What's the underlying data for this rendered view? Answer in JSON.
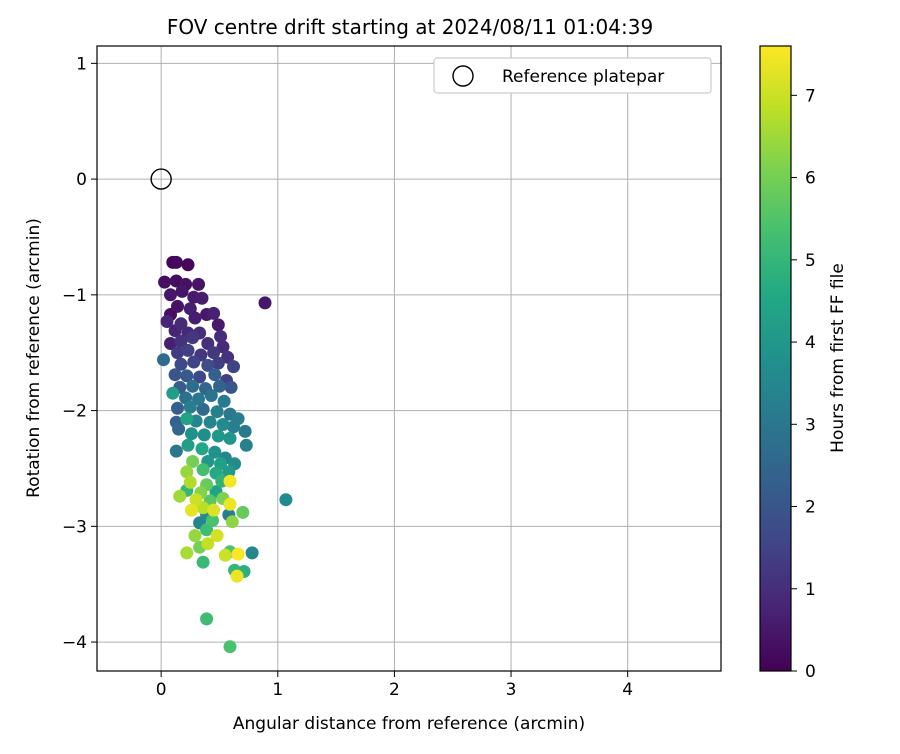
{
  "chart_data": {
    "type": "scatter",
    "title": "FOV centre drift starting at 2024/08/11 01:04:39",
    "xlabel": "Angular distance from reference (arcmin)",
    "ylabel": "Rotation from reference (arcmin)",
    "xlim": [
      -0.55,
      4.8
    ],
    "ylim": [
      -4.25,
      1.15
    ],
    "xticks": [
      0,
      1,
      2,
      3,
      4
    ],
    "yticks": [
      1,
      0,
      -1,
      -2,
      -3,
      -4
    ],
    "grid": true,
    "legend": {
      "placement": "upper right",
      "entries": [
        "Reference platepar"
      ]
    },
    "reference_point": {
      "x": 0,
      "y": 0
    },
    "colorbar": {
      "label": "Hours from first FF file",
      "range": [
        0,
        7.6
      ],
      "ticks": [
        0,
        1,
        2,
        3,
        4,
        5,
        6,
        7
      ],
      "colormap": "viridis"
    },
    "series": [
      {
        "name": "Reference platepar",
        "points": [
          [
            0.1,
            -0.72,
            0.1
          ],
          [
            0.13,
            -0.72,
            0.2
          ],
          [
            0.23,
            -0.74,
            0.15
          ],
          [
            0.03,
            -0.89,
            0.3
          ],
          [
            0.13,
            -0.88,
            0.25
          ],
          [
            0.21,
            -0.91,
            0.35
          ],
          [
            0.32,
            -0.91,
            0.4
          ],
          [
            0.08,
            -1.0,
            0.5
          ],
          [
            0.18,
            -0.97,
            0.45
          ],
          [
            0.28,
            -1.02,
            0.55
          ],
          [
            0.35,
            -1.03,
            0.6
          ],
          [
            0.89,
            -1.07,
            0.5
          ],
          [
            0.08,
            -1.17,
            0.3
          ],
          [
            0.14,
            -1.1,
            0.4
          ],
          [
            0.25,
            -1.12,
            0.65
          ],
          [
            0.39,
            -1.17,
            0.5
          ],
          [
            0.45,
            -1.16,
            0.7
          ],
          [
            0.05,
            -1.23,
            0.8
          ],
          [
            0.17,
            -1.25,
            0.9
          ],
          [
            0.29,
            -1.2,
            0.6
          ],
          [
            0.49,
            -1.26,
            0.55
          ],
          [
            0.12,
            -1.31,
            0.75
          ],
          [
            0.23,
            -1.33,
            0.85
          ],
          [
            0.33,
            -1.33,
            1.0
          ],
          [
            0.51,
            -1.36,
            0.95
          ],
          [
            0.08,
            -1.42,
            0.65
          ],
          [
            0.17,
            -1.4,
            1.1
          ],
          [
            0.27,
            -1.37,
            1.2
          ],
          [
            0.4,
            -1.42,
            1.0
          ],
          [
            0.53,
            -1.45,
            0.9
          ],
          [
            0.14,
            -1.5,
            1.3
          ],
          [
            0.23,
            -1.48,
            1.4
          ],
          [
            0.34,
            -1.52,
            1.2
          ],
          [
            0.45,
            -1.5,
            1.25
          ],
          [
            0.57,
            -1.54,
            1.1
          ],
          [
            0.02,
            -1.56,
            2.6
          ],
          [
            0.17,
            -1.6,
            1.7
          ],
          [
            0.28,
            -1.58,
            1.5
          ],
          [
            0.4,
            -1.61,
            1.8
          ],
          [
            0.49,
            -1.59,
            1.35
          ],
          [
            0.62,
            -1.62,
            1.5
          ],
          [
            0.12,
            -1.69,
            2.0
          ],
          [
            0.22,
            -1.7,
            2.1
          ],
          [
            0.33,
            -1.71,
            1.6
          ],
          [
            0.46,
            -1.69,
            2.3
          ],
          [
            0.56,
            -1.74,
            1.4
          ],
          [
            0.16,
            -1.8,
            2.2
          ],
          [
            0.27,
            -1.79,
            2.7
          ],
          [
            0.38,
            -1.81,
            2.5
          ],
          [
            0.5,
            -1.79,
            2.4
          ],
          [
            0.6,
            -1.8,
            2.0
          ],
          [
            0.1,
            -1.85,
            4.2
          ],
          [
            0.21,
            -1.89,
            2.8
          ],
          [
            0.32,
            -1.9,
            3.0
          ],
          [
            0.43,
            -1.87,
            2.9
          ],
          [
            0.54,
            -1.92,
            3.1
          ],
          [
            0.14,
            -1.98,
            2.3
          ],
          [
            0.25,
            -1.97,
            3.2
          ],
          [
            0.36,
            -1.99,
            2.6
          ],
          [
            0.48,
            -2.01,
            3.3
          ],
          [
            0.59,
            -2.03,
            3.0
          ],
          [
            0.66,
            -2.07,
            3.2
          ],
          [
            0.13,
            -2.1,
            2.4
          ],
          [
            0.22,
            -2.07,
            4.4
          ],
          [
            0.3,
            -2.09,
            3.5
          ],
          [
            0.42,
            -2.1,
            3.4
          ],
          [
            0.53,
            -2.12,
            3.6
          ],
          [
            0.62,
            -2.14,
            3.2
          ],
          [
            0.15,
            -2.16,
            2.5
          ],
          [
            0.26,
            -2.2,
            3.8
          ],
          [
            0.37,
            -2.21,
            3.7
          ],
          [
            0.49,
            -2.22,
            4.0
          ],
          [
            0.59,
            -2.24,
            3.9
          ],
          [
            0.72,
            -2.18,
            3.1
          ],
          [
            0.73,
            -2.3,
            3.3
          ],
          [
            0.13,
            -2.35,
            3.0
          ],
          [
            0.23,
            -2.3,
            4.2
          ],
          [
            0.35,
            -2.33,
            4.5
          ],
          [
            0.46,
            -2.36,
            3.8
          ],
          [
            0.55,
            -2.41,
            3.5
          ],
          [
            0.27,
            -2.44,
            6.0
          ],
          [
            0.4,
            -2.44,
            4.0
          ],
          [
            0.51,
            -2.46,
            4.3
          ],
          [
            0.63,
            -2.46,
            3.7
          ],
          [
            0.22,
            -2.53,
            6.4
          ],
          [
            0.36,
            -2.51,
            5.3
          ],
          [
            0.47,
            -2.54,
            4.6
          ],
          [
            0.58,
            -2.53,
            4.1
          ],
          [
            0.25,
            -2.62,
            6.7
          ],
          [
            0.39,
            -2.64,
            5.8
          ],
          [
            0.52,
            -2.61,
            4.9
          ],
          [
            0.59,
            -2.61,
            7.5
          ],
          [
            0.22,
            -2.69,
            5.0
          ],
          [
            0.34,
            -2.71,
            6.2
          ],
          [
            0.47,
            -2.7,
            4.4
          ],
          [
            0.16,
            -2.74,
            6.5
          ],
          [
            0.3,
            -2.77,
            7.0
          ],
          [
            0.42,
            -2.78,
            5.6
          ],
          [
            0.53,
            -2.76,
            6.1
          ],
          [
            1.07,
            -2.77,
            3.6
          ],
          [
            0.26,
            -2.86,
            7.3
          ],
          [
            0.36,
            -2.84,
            6.8
          ],
          [
            0.45,
            -2.86,
            7.2
          ],
          [
            0.59,
            -2.81,
            7.4
          ],
          [
            0.39,
            -2.9,
            3.6
          ],
          [
            0.58,
            -2.9,
            3.2
          ],
          [
            0.7,
            -2.88,
            5.8
          ],
          [
            0.33,
            -2.97,
            3.4
          ],
          [
            0.44,
            -2.95,
            5.4
          ],
          [
            0.61,
            -2.96,
            6.3
          ],
          [
            0.29,
            -3.08,
            6.4
          ],
          [
            0.39,
            -3.03,
            5.2
          ],
          [
            0.48,
            -3.08,
            7.1
          ],
          [
            0.33,
            -3.18,
            6.0
          ],
          [
            0.4,
            -3.15,
            6.9
          ],
          [
            0.22,
            -3.23,
            6.6
          ],
          [
            0.55,
            -3.25,
            7.0
          ],
          [
            0.59,
            -3.22,
            5.5
          ],
          [
            0.66,
            -3.24,
            7.6
          ],
          [
            0.78,
            -3.23,
            3.5
          ],
          [
            0.36,
            -3.31,
            5.1
          ],
          [
            0.63,
            -3.38,
            5.0
          ],
          [
            0.71,
            -3.39,
            4.8
          ],
          [
            0.65,
            -3.43,
            7.4
          ],
          [
            0.39,
            -3.8,
            5.2
          ],
          [
            0.59,
            -4.04,
            5.4
          ]
        ]
      }
    ]
  }
}
